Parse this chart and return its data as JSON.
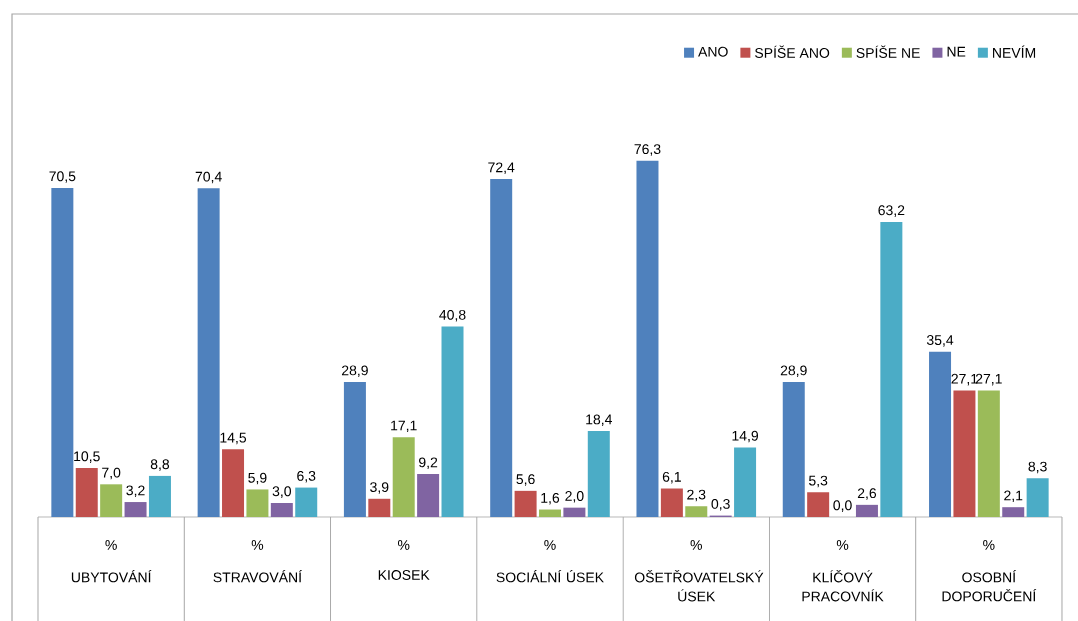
{
  "chart_data": {
    "type": "bar",
    "categories": [
      "UBYTOVÁNÍ",
      "STRAVOVÁNÍ",
      "KIOSEK",
      "SOCIÁLNÍ ÚSEK",
      "OŠETŘOVATELSKÝ ÚSEK",
      "KLÍČOVÝ PRACOVNÍK",
      "OSOBNÍ DOPORUČENÍ"
    ],
    "annotations": [
      "%",
      "%",
      "%",
      "%",
      "%",
      "%",
      "%"
    ],
    "series": [
      {
        "name": "ANO",
        "color": "#4f81bd",
        "values": [
          70.5,
          70.4,
          28.9,
          72.4,
          76.3,
          28.9,
          35.4
        ],
        "value_labels": [
          "70,5",
          "70,4",
          "28,9",
          "72,4",
          "76,3",
          "28,9",
          "35,4"
        ]
      },
      {
        "name": "SPÍŠE ANO",
        "color": "#c0504d",
        "values": [
          10.5,
          14.5,
          3.9,
          5.6,
          6.1,
          5.3,
          27.1
        ],
        "value_labels": [
          "10,5",
          "14,5",
          "3,9",
          "5,6",
          "6,1",
          "5,3",
          "27,1"
        ]
      },
      {
        "name": "SPÍŠE NE",
        "color": "#9bbb59",
        "values": [
          7.0,
          5.9,
          17.1,
          1.6,
          2.3,
          0.0,
          27.1
        ],
        "value_labels": [
          "7,0",
          "5,9",
          "17,1",
          "1,6",
          "2,3",
          "0,0",
          "27,1"
        ]
      },
      {
        "name": "NE",
        "color": "#8064a2",
        "values": [
          3.2,
          3.0,
          9.2,
          2.0,
          0.3,
          2.6,
          2.1
        ],
        "value_labels": [
          "3,2",
          "3,0",
          "9,2",
          "2,0",
          "0,3",
          "2,6",
          "2,1"
        ]
      },
      {
        "name": "NEVÍM",
        "color": "#4bacc6",
        "values": [
          8.8,
          6.3,
          40.8,
          18.4,
          14.9,
          63.2,
          8.3
        ],
        "value_labels": [
          "8,8",
          "6,3",
          "40,8",
          "18,4",
          "14,9",
          "63,2",
          "8,3"
        ]
      }
    ],
    "legend": "top right"
  }
}
